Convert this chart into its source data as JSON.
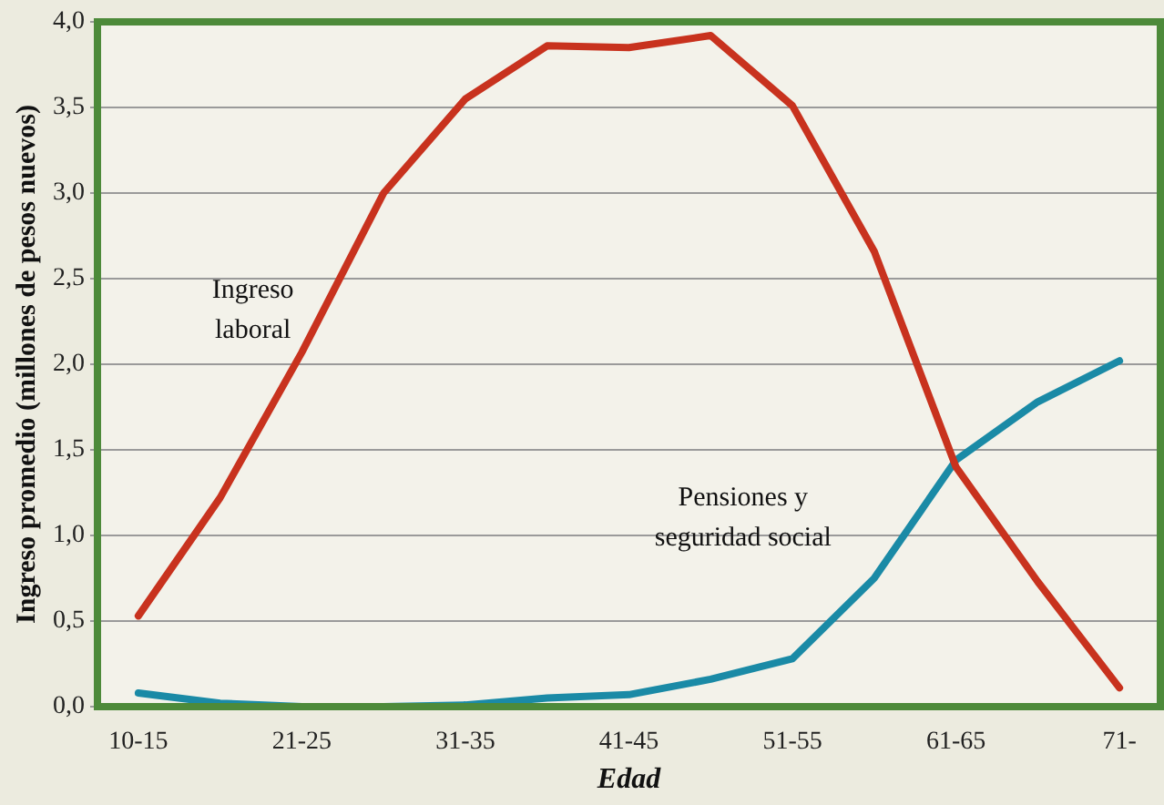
{
  "chart_data": {
    "type": "line",
    "xlabel": "Edad",
    "ylabel": "Ingreso promedio (millones de pesos nuevos)",
    "categories": [
      "10-15",
      null,
      "21-25",
      null,
      "31-35",
      null,
      "41-45",
      null,
      "51-55",
      null,
      "61-65",
      null,
      "71-"
    ],
    "series": [
      {
        "name": "Ingreso laboral",
        "color": "#c8321e",
        "values": [
          0.53,
          1.22,
          2.07,
          3.0,
          3.55,
          3.86,
          3.85,
          3.92,
          3.51,
          2.66,
          1.4,
          0.73,
          0.11
        ]
      },
      {
        "name": "Pensiones y seguridad social",
        "color": "#1a8aa6",
        "values": [
          0.08,
          0.02,
          0.0,
          0.0,
          0.01,
          0.05,
          0.07,
          0.16,
          0.28,
          0.75,
          1.44,
          1.78,
          2.02
        ]
      }
    ],
    "ylim": [
      0,
      4
    ],
    "yticks": [
      {
        "value": 0,
        "label": "0,0"
      },
      {
        "value": 0.5,
        "label": "0,5"
      },
      {
        "value": 1,
        "label": "1,0"
      },
      {
        "value": 1.5,
        "label": "1,5"
      },
      {
        "value": 2,
        "label": "2,0"
      },
      {
        "value": 2.5,
        "label": "2,5"
      },
      {
        "value": 3,
        "label": "3,0"
      },
      {
        "value": 3.5,
        "label": "3,5"
      },
      {
        "value": 4,
        "label": "4,0"
      }
    ],
    "grid": "y",
    "legend": false,
    "marker": "none",
    "line_style": "solid"
  }
}
